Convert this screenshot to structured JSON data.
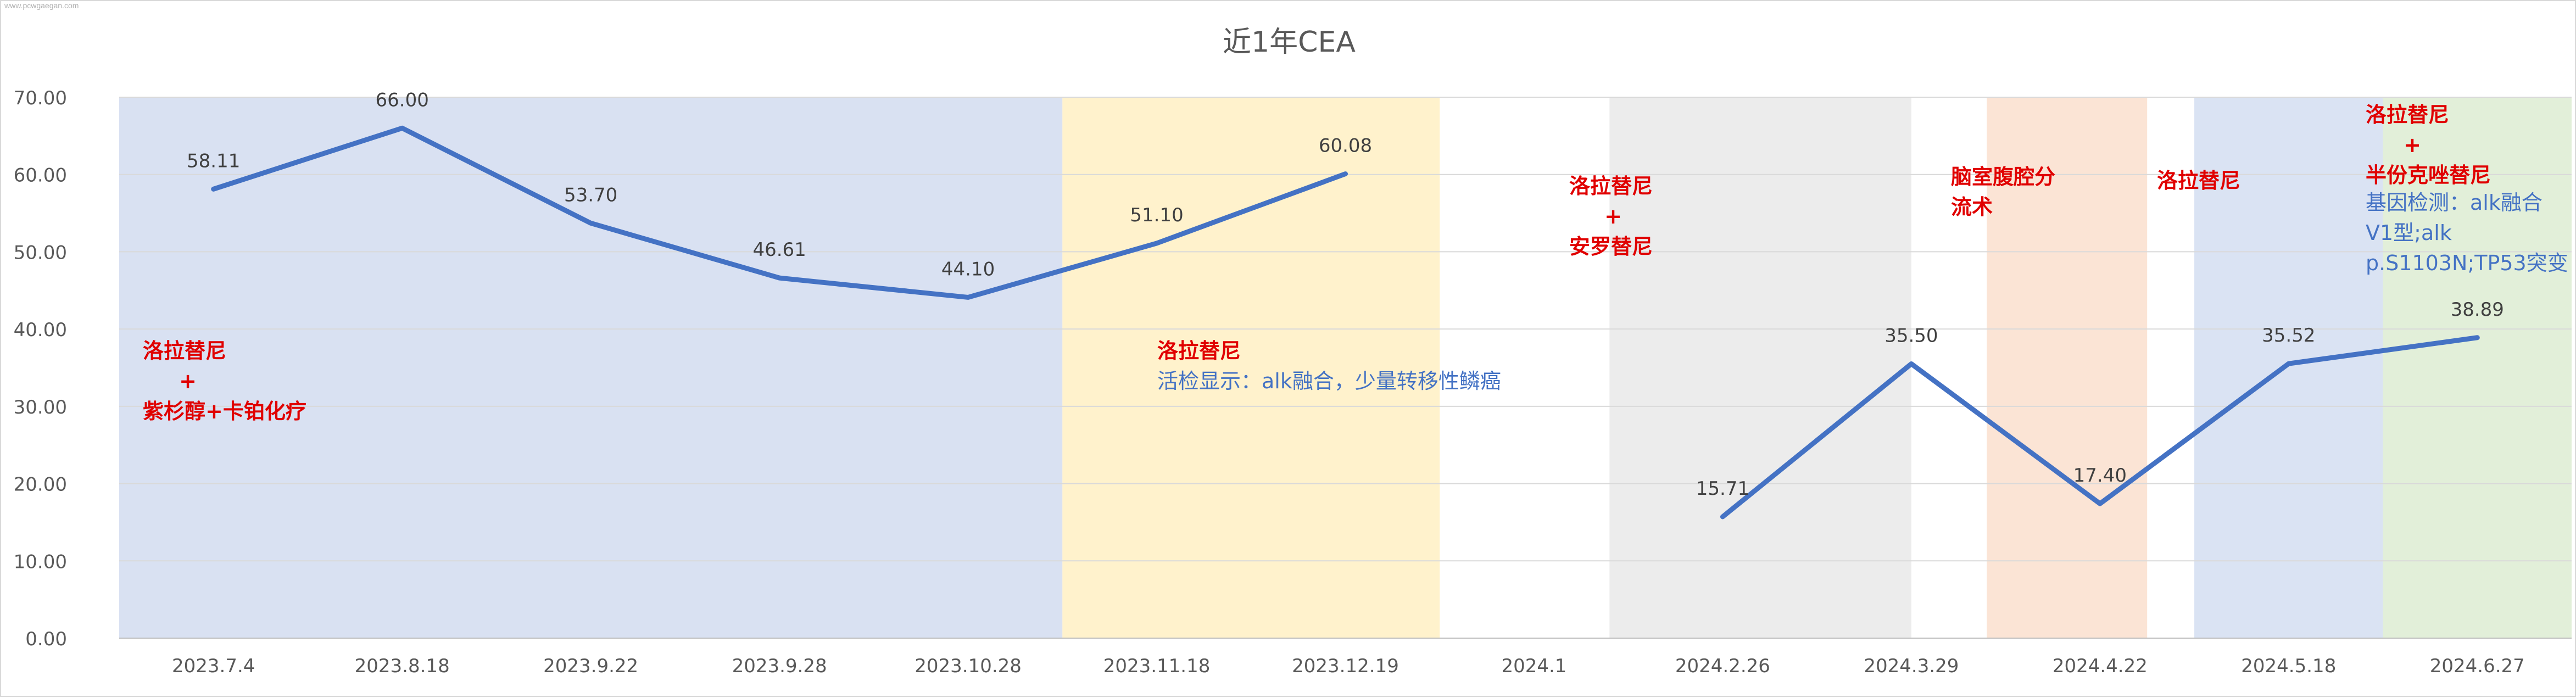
{
  "watermark": "www.pcwgaegan.com",
  "chart_data": {
    "type": "line",
    "title": "近1年CEA",
    "xlabel": "",
    "ylabel": "",
    "ylim": [
      0,
      70
    ],
    "yticks": [
      "0.00",
      "10.00",
      "20.00",
      "30.00",
      "40.00",
      "50.00",
      "60.00",
      "70.00"
    ],
    "categories": [
      "2023.7.4",
      "2023.8.18",
      "2023.9.22",
      "2023.9.28",
      "2023.10.28",
      "2023.11.18",
      "2023.12.19",
      "2024.1",
      "2024.2.26",
      "2024.3.29",
      "2024.4.22",
      "2024.5.18",
      "2024.6.27"
    ],
    "grid": true,
    "legend": "none",
    "series": [
      {
        "values": [
          58.11,
          66.0,
          53.7,
          46.61,
          44.1,
          51.1,
          60.08,
          null,
          15.71,
          35.5,
          17.4,
          35.52,
          38.89
        ],
        "labels": [
          "58.11",
          "66.00",
          "53.70",
          "46.61",
          "44.10",
          "51.10",
          "60.08",
          "",
          "15.71",
          "35.50",
          "17.40",
          "35.52",
          "38.89"
        ],
        "color": "#4472c4"
      }
    ],
    "bands": [
      {
        "from": 0,
        "to": 5,
        "color": "#d9e1f2"
      },
      {
        "from": 5,
        "to": 7,
        "color": "#fff2cc"
      },
      {
        "from": 7.9,
        "to": 9.5,
        "color": "#ececec"
      },
      {
        "from": 9.9,
        "to": 10.75,
        "color": "#fbe4d5"
      },
      {
        "from": 11.0,
        "to": 12.0,
        "color": "#dae3f3"
      },
      {
        "from": 12.0,
        "to": 13.0,
        "color": "#e2efd9"
      }
    ],
    "annotations": [
      {
        "lines": [
          "洛拉替尼",
          "+",
          "紫杉醇+卡铂化疗"
        ],
        "color": "#e00000"
      },
      {
        "lines": [
          "洛拉替尼"
        ],
        "color": "#e00000"
      },
      {
        "lines": [
          "活检显示：alk融合，少量转移性鳞癌"
        ],
        "color": "#4472c4"
      },
      {
        "lines": [
          "洛拉替尼",
          "+",
          "安罗替尼"
        ],
        "color": "#e00000"
      },
      {
        "lines": [
          "脑室腹腔分",
          "流术"
        ],
        "color": "#e00000"
      },
      {
        "lines": [
          "洛拉替尼"
        ],
        "color": "#e00000"
      },
      {
        "lines": [
          "洛拉替尼",
          "+",
          "半份克唑替尼"
        ],
        "color": "#e00000"
      },
      {
        "lines": [
          "基因检测：alk融合",
          "V1型;alk",
          "p.S1103N;TP53突变"
        ],
        "color": "#4472c4"
      }
    ]
  }
}
